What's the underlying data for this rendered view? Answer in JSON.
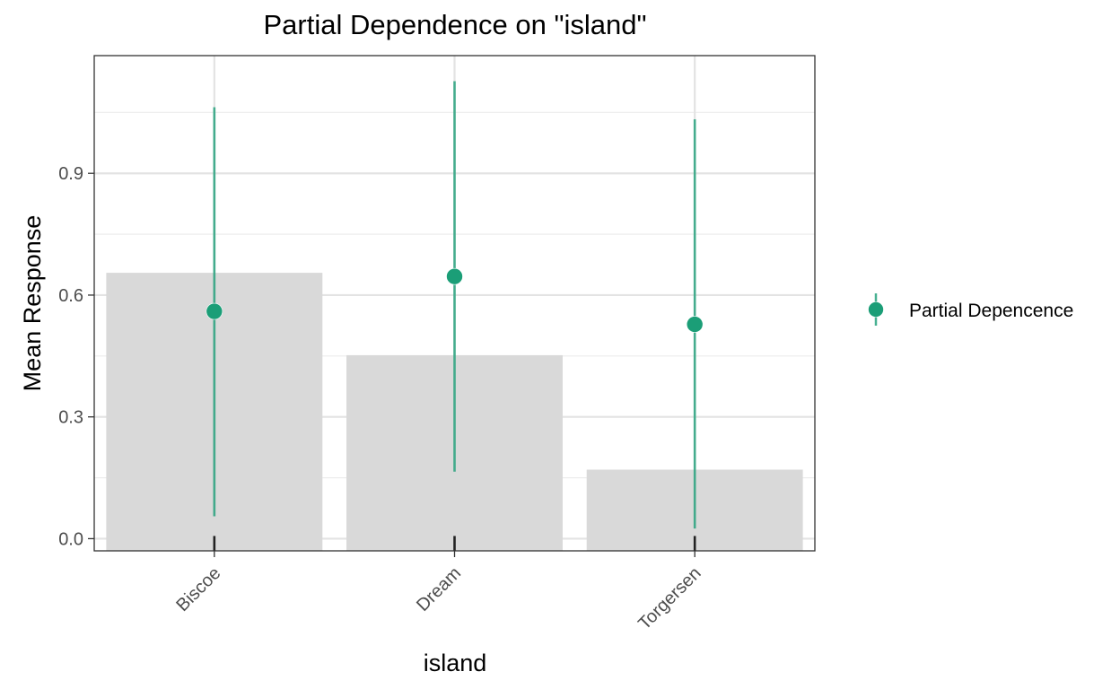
{
  "chart_data": {
    "type": "bar",
    "title": "Partial Dependence on \"island\"",
    "xlabel": "island",
    "ylabel": "Mean Response",
    "categories": [
      "Biscoe",
      "Dream",
      "Torgersen"
    ],
    "ylim": [
      -0.03,
      1.19
    ],
    "yticks": [
      0.0,
      0.3,
      0.6,
      0.9
    ],
    "ytick_labels": [
      "0.0",
      "0.3",
      "0.6",
      "0.9"
    ],
    "grid": true,
    "bars": {
      "values": [
        0.655,
        0.452,
        0.17
      ],
      "color": "#d9d9d9"
    },
    "series": [
      {
        "name": "Partial Depencence",
        "type": "pointrange",
        "values": [
          0.56,
          0.646,
          0.528
        ],
        "lower": [
          0.055,
          0.165,
          0.025
        ],
        "upper": [
          1.063,
          1.127,
          1.033
        ],
        "color": "#1b9e77"
      }
    ],
    "rug": [
      0.0,
      0.0,
      0.0
    ],
    "legend_position": "right"
  }
}
